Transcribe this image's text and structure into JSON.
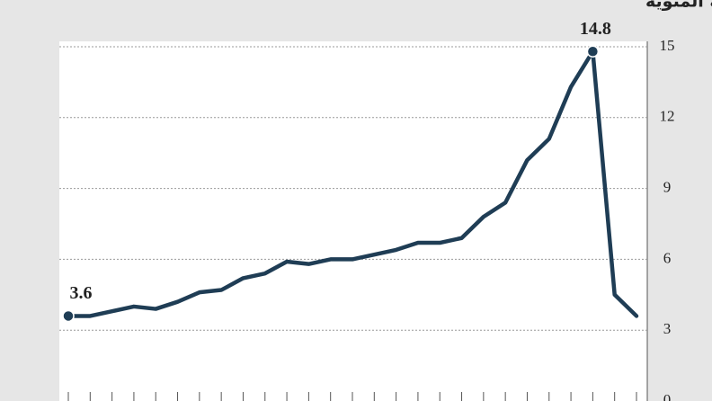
{
  "chart_data": {
    "type": "line",
    "title": "معدل البطالة الشهري، بالنسبة المئوية",
    "categories": [
      null,
      null,
      null,
      null,
      null,
      null,
      null,
      null,
      null,
      null,
      null,
      null,
      null,
      null,
      null,
      null,
      null,
      null,
      null,
      null,
      null,
      null,
      null,
      null,
      null,
      null,
      null
    ],
    "series": [
      {
        "color": "#1f3d55",
        "values": [
          3.6,
          3.6,
          3.8,
          4.0,
          3.9,
          4.2,
          4.6,
          4.7,
          5.2,
          5.4,
          5.9,
          5.8,
          6.0,
          6.0,
          6.2,
          6.4,
          6.7,
          6.7,
          6.9,
          7.8,
          8.4,
          10.2,
          11.1,
          13.3,
          14.8,
          4.5,
          3.6
        ],
        "value_labels": [
          "3.6",
          null,
          null,
          null,
          null,
          null,
          null,
          null,
          null,
          null,
          null,
          null,
          null,
          null,
          null,
          null,
          null,
          null,
          null,
          null,
          null,
          null,
          null,
          null,
          "14.8",
          null,
          null
        ]
      }
    ],
    "ylim": [
      0,
      15
    ],
    "yticks": [
      0,
      3,
      6,
      9,
      12,
      15
    ],
    "grid": true
  }
}
